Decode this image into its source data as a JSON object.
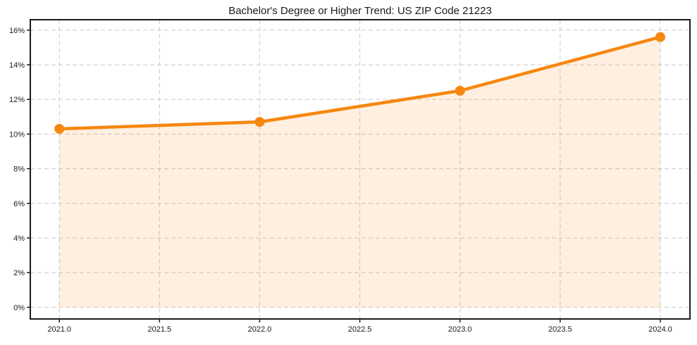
{
  "chart_data": {
    "type": "line",
    "title": "Bachelor's Degree or Higher Trend: US ZIP Code 21223",
    "x": [
      2021,
      2022,
      2023,
      2024
    ],
    "values": [
      10.3,
      10.7,
      12.5,
      15.6
    ],
    "xlabel": "",
    "ylabel": "",
    "xlim": [
      2020.855,
      2024.148
    ],
    "ylim": [
      -0.674,
      16.6
    ],
    "x_ticks": [
      2021.0,
      2021.5,
      2022.0,
      2022.5,
      2023.0,
      2023.5,
      2024.0
    ],
    "x_tick_labels": [
      "2021.0",
      "2021.5",
      "2022.0",
      "2022.5",
      "2023.0",
      "2023.5",
      "2024.0"
    ],
    "y_ticks": [
      0,
      2,
      4,
      6,
      8,
      10,
      12,
      14,
      16
    ],
    "y_tick_labels": [
      "0%",
      "2%",
      "4%",
      "6%",
      "8%",
      "10%",
      "12%",
      "14%",
      "16%"
    ],
    "grid": true,
    "grid_style": "dashed",
    "legend": null,
    "colors": {
      "line": "#F6870F",
      "marker": "#F6870F",
      "fill": "rgba(246,135,15,0.13)",
      "grid": "#c9c9c9",
      "spine": "#1a1a1a",
      "text": "#1a1a1a",
      "background": "#ffffff"
    }
  }
}
